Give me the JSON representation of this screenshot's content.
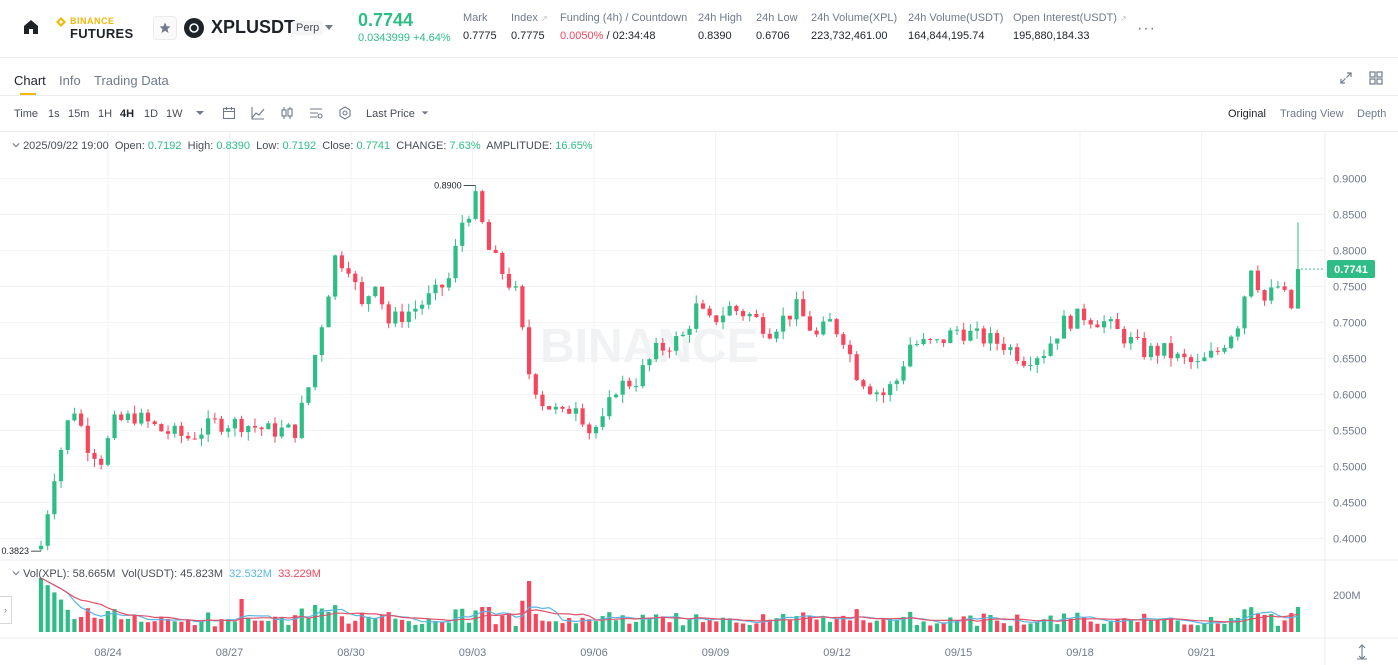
{
  "header": {
    "logo_top": "BINANCE",
    "logo_bottom": "FUTURES",
    "symbol": "XPLUSDT",
    "contract_badge": "Perp",
    "last_price": "0.7744",
    "price_change": "0.0343999 +4.64%",
    "stats": [
      {
        "label": "Mark",
        "value": "0.7775"
      },
      {
        "label": "Index",
        "value": "0.7775"
      },
      {
        "label": "Funding (4h) / Countdown",
        "value_rate": "0.0050%",
        "value_countdown": "/ 02:34:48"
      },
      {
        "label": "24h High",
        "value": "0.8390"
      },
      {
        "label": "24h Low",
        "value": "0.6706"
      },
      {
        "label": "24h Volume(XPL)",
        "value": "223,732,461.00"
      },
      {
        "label": "24h Volume(USDT)",
        "value": "164,844,195.74"
      },
      {
        "label": "Open Interest(USDT)",
        "value": "195,880,184.33"
      }
    ],
    "more": "···"
  },
  "tabs": [
    "Chart",
    "Info",
    "Trading Data"
  ],
  "toolbar": {
    "intervals": [
      "Time",
      "1s",
      "15m",
      "1H",
      "4H",
      "1D",
      "1W"
    ],
    "active_interval": "4H",
    "price_type": "Last Price",
    "views": [
      "Original",
      "Trading View",
      "Depth"
    ],
    "active_view": "Original"
  },
  "legend": {
    "date": "2025/09/22 19:00",
    "open_label": "Open:",
    "open": "0.7192",
    "high_label": "High:",
    "high": "0.8390",
    "low_label": "Low:",
    "low": "0.7192",
    "close_label": "Close:",
    "close": "0.7741",
    "change_label": "CHANGE:",
    "change": "7.63%",
    "amplitude_label": "AMPLITUDE:",
    "amplitude": "16.65%"
  },
  "vol_legend": {
    "xpl_label": "Vol(XPL):",
    "xpl": "58.665M",
    "usdt_label": "Vol(USDT):",
    "usdt": "45.823M",
    "ma1": "32.532M",
    "ma2": "33.229M"
  },
  "colors": {
    "up": "#2ebd85",
    "down": "#f6465d",
    "accent": "#f0b90b",
    "ma1": "#5ab4e3",
    "ma2": "#e0526c"
  },
  "chart_data": {
    "type": "candlestick",
    "interval": "4H",
    "y_ticks": [
      "0.9000",
      "0.8500",
      "0.8000",
      "0.7500",
      "0.7000",
      "0.6500",
      "0.6000",
      "0.5500",
      "0.5000",
      "0.4500",
      "0.4000"
    ],
    "ylim": [
      0.37,
      0.92
    ],
    "x_ticks": [
      "08/24",
      "08/27",
      "08/30",
      "09/03",
      "09/06",
      "09/09",
      "09/12",
      "09/15",
      "09/18",
      "09/21"
    ],
    "last_price_label": "0.7741",
    "max_label": "0.8900",
    "min_label": "0.3823",
    "volume_tick": "200M",
    "anchors": [
      [
        0,
        0.39
      ],
      [
        2,
        0.49
      ],
      [
        4,
        0.56
      ],
      [
        5,
        0.58
      ],
      [
        7,
        0.53
      ],
      [
        9,
        0.51
      ],
      [
        11,
        0.56
      ],
      [
        14,
        0.57
      ],
      [
        18,
        0.55
      ],
      [
        22,
        0.54
      ],
      [
        26,
        0.56
      ],
      [
        30,
        0.56
      ],
      [
        34,
        0.55
      ],
      [
        38,
        0.55
      ],
      [
        40,
        0.61
      ],
      [
        42,
        0.7
      ],
      [
        44,
        0.79
      ],
      [
        46,
        0.78
      ],
      [
        48,
        0.72
      ],
      [
        50,
        0.76
      ],
      [
        52,
        0.7
      ],
      [
        56,
        0.72
      ],
      [
        59,
        0.74
      ],
      [
        61,
        0.76
      ],
      [
        63,
        0.84
      ],
      [
        65,
        0.87
      ],
      [
        67,
        0.8
      ],
      [
        69,
        0.77
      ],
      [
        71,
        0.74
      ],
      [
        73,
        0.63
      ],
      [
        75,
        0.59
      ],
      [
        78,
        0.57
      ],
      [
        80,
        0.59
      ],
      [
        82,
        0.55
      ],
      [
        84,
        0.56
      ],
      [
        86,
        0.61
      ],
      [
        89,
        0.62
      ],
      [
        92,
        0.66
      ],
      [
        96,
        0.68
      ],
      [
        98,
        0.72
      ],
      [
        100,
        0.7
      ],
      [
        103,
        0.72
      ],
      [
        106,
        0.71
      ],
      [
        109,
        0.69
      ],
      [
        113,
        0.72
      ],
      [
        116,
        0.68
      ],
      [
        118,
        0.7
      ],
      [
        120,
        0.68
      ],
      [
        122,
        0.63
      ],
      [
        124,
        0.61
      ],
      [
        126,
        0.6
      ],
      [
        128,
        0.62
      ],
      [
        130,
        0.67
      ],
      [
        134,
        0.67
      ],
      [
        137,
        0.69
      ],
      [
        140,
        0.68
      ],
      [
        144,
        0.67
      ],
      [
        147,
        0.65
      ],
      [
        150,
        0.66
      ],
      [
        153,
        0.7
      ],
      [
        156,
        0.71
      ],
      [
        159,
        0.7
      ],
      [
        162,
        0.68
      ],
      [
        165,
        0.66
      ],
      [
        168,
        0.66
      ],
      [
        170,
        0.65
      ],
      [
        173,
        0.64
      ],
      [
        176,
        0.66
      ],
      [
        179,
        0.7
      ],
      [
        181,
        0.78
      ],
      [
        183,
        0.73
      ],
      [
        185,
        0.75
      ],
      [
        187,
        0.72
      ],
      [
        188,
        0.7741
      ]
    ]
  }
}
